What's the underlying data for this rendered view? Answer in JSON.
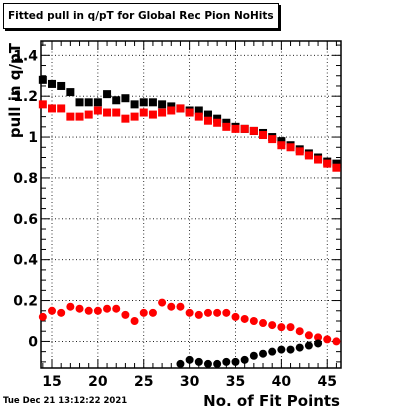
{
  "title": "Fitted pull in q/pT for Global Rec Pion NoHits",
  "datestamp": "Tue Dec 21 13:12:22 2021",
  "chart_data": {
    "type": "scatter",
    "xlabel": "No. of Fit Points",
    "ylabel": "pull in q/pT",
    "xlim": [
      13.8,
      46.5
    ],
    "ylim": [
      -0.13,
      1.47
    ],
    "grid": true,
    "x_ticks": [
      "15",
      "20",
      "25",
      "30",
      "35",
      "40",
      "45"
    ],
    "y_ticks": [
      "0",
      "0.2",
      "0.4",
      "0.6",
      "0.8",
      "1",
      "1.2",
      "1.4"
    ],
    "series": [
      {
        "color": "#000000",
        "marker": "square",
        "x": [
          14,
          15,
          16,
          17,
          18,
          19,
          20,
          21,
          22,
          23,
          24,
          25,
          26,
          27,
          28,
          29,
          30,
          31,
          32,
          33,
          34,
          35,
          36,
          37,
          38,
          39,
          40,
          41,
          42,
          43,
          44,
          45,
          46
        ],
        "values": [
          1.28,
          1.26,
          1.25,
          1.22,
          1.17,
          1.17,
          1.17,
          1.21,
          1.18,
          1.19,
          1.16,
          1.17,
          1.17,
          1.16,
          1.15,
          1.14,
          1.13,
          1.13,
          1.11,
          1.09,
          1.07,
          1.05,
          1.04,
          1.03,
          1.02,
          1.0,
          0.98,
          0.96,
          0.94,
          0.92,
          0.9,
          0.88,
          0.87
        ]
      },
      {
        "color": "#ff0000",
        "marker": "square",
        "x": [
          14,
          15,
          16,
          17,
          18,
          19,
          20,
          21,
          22,
          23,
          24,
          25,
          26,
          27,
          28,
          29,
          30,
          31,
          32,
          33,
          34,
          35,
          36,
          37,
          38,
          39,
          40,
          41,
          42,
          43,
          44,
          45,
          46
        ],
        "values": [
          1.16,
          1.14,
          1.14,
          1.1,
          1.1,
          1.11,
          1.13,
          1.12,
          1.12,
          1.09,
          1.1,
          1.12,
          1.11,
          1.12,
          1.13,
          1.14,
          1.12,
          1.1,
          1.08,
          1.07,
          1.05,
          1.04,
          1.04,
          1.03,
          1.01,
          0.99,
          0.96,
          0.95,
          0.93,
          0.91,
          0.89,
          0.87,
          0.85
        ]
      },
      {
        "color": "#ff0000",
        "marker": "circle",
        "x": [
          14,
          15,
          16,
          17,
          18,
          19,
          20,
          21,
          22,
          23,
          24,
          25,
          26,
          27,
          28,
          29,
          30,
          31,
          32,
          33,
          34,
          35,
          36,
          37,
          38,
          39,
          40,
          41,
          42,
          43,
          44,
          45,
          46
        ],
        "values": [
          0.12,
          0.15,
          0.14,
          0.17,
          0.16,
          0.15,
          0.15,
          0.16,
          0.16,
          0.13,
          0.1,
          0.14,
          0.14,
          0.19,
          0.17,
          0.17,
          0.14,
          0.13,
          0.14,
          0.14,
          0.14,
          0.12,
          0.11,
          0.1,
          0.09,
          0.08,
          0.07,
          0.07,
          0.05,
          0.03,
          0.02,
          0.01,
          0.0
        ]
      },
      {
        "color": "#000000",
        "marker": "circle",
        "x": [
          29,
          30,
          31,
          32,
          33,
          34,
          35,
          36,
          37,
          38,
          39,
          40,
          41,
          42,
          43,
          44
        ],
        "values": [
          -0.11,
          -0.09,
          -0.1,
          -0.11,
          -0.11,
          -0.1,
          -0.1,
          -0.09,
          -0.07,
          -0.06,
          -0.05,
          -0.04,
          -0.04,
          -0.03,
          -0.02,
          -0.01
        ]
      }
    ]
  }
}
